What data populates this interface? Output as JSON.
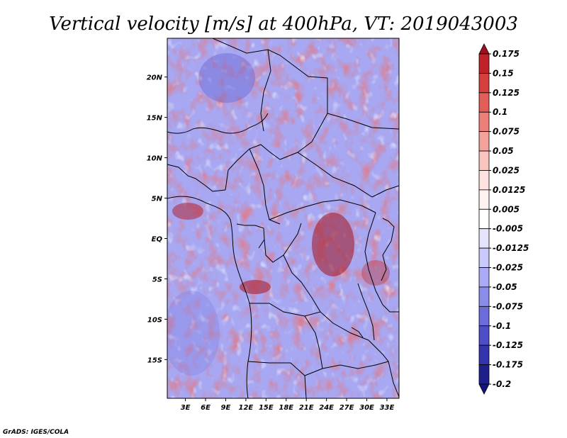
{
  "chart_data": {
    "type": "heatmap",
    "title": "Vertical velocity [m/s] at 400hPa, VT: 2019043003",
    "variable": "Vertical velocity",
    "units": "m/s",
    "level": "400hPa",
    "valid_time": "2019043003",
    "x_ticks": [
      "3E",
      "6E",
      "9E",
      "12E",
      "15E",
      "18E",
      "21E",
      "24E",
      "27E",
      "30E",
      "33E"
    ],
    "x_tick_values": [
      3,
      6,
      9,
      12,
      15,
      18,
      21,
      24,
      27,
      30,
      33
    ],
    "y_ticks": [
      "20N",
      "15N",
      "10N",
      "5N",
      "EQ",
      "5S",
      "10S",
      "15S"
    ],
    "y_tick_values": [
      20,
      15,
      10,
      5,
      0,
      -5,
      -10,
      -15
    ],
    "xlim": [
      0.3,
      34.8
    ],
    "ylim": [
      -19.8,
      24.8
    ],
    "colorbar_labels": [
      "0.175",
      "0.15",
      "0.125",
      "0.1",
      "0.075",
      "0.05",
      "0.025",
      "0.0125",
      "0.005",
      "-0.005",
      "-0.0125",
      "-0.025",
      "-0.05",
      "-0.075",
      "-0.1",
      "-0.125",
      "-0.175",
      "-0.2"
    ],
    "colorbar_colors": [
      "#a01020",
      "#c02228",
      "#d6403c",
      "#e35e56",
      "#ec8078",
      "#f4a39c",
      "#fac4bf",
      "#fde2df",
      "#fff3f1",
      "#ffffff",
      "#e4e4ff",
      "#c9c9fb",
      "#aaaaf5",
      "#8b8bea",
      "#6b6bdc",
      "#4e4ec8",
      "#3333ad",
      "#1f1f8c",
      "#14147a"
    ],
    "legend_position": "right",
    "grid": false
  },
  "credit": "GrADS: IGES/COLA"
}
